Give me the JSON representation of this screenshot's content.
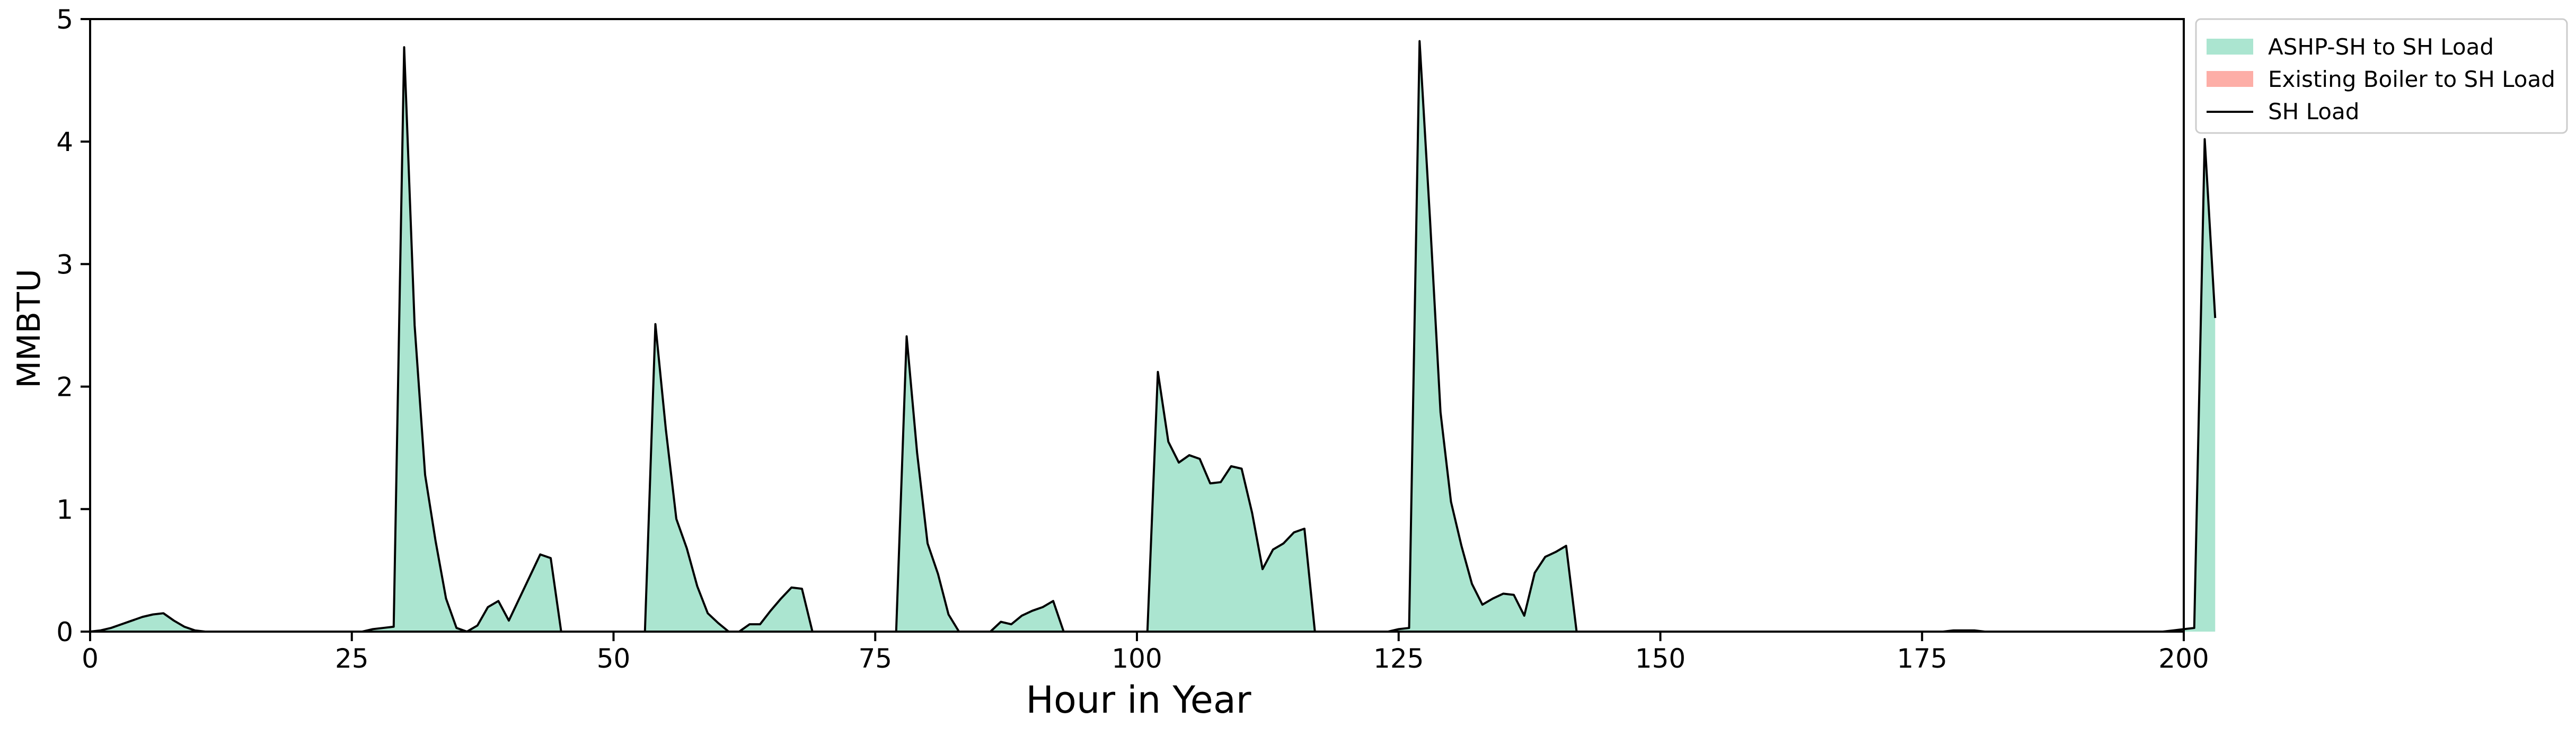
{
  "chart_data": {
    "type": "area",
    "title": "",
    "xlabel": "Hour in Year",
    "ylabel": "MMBTU",
    "xlim": [
      0,
      200
    ],
    "ylim": [
      0,
      5
    ],
    "x_ticks": [
      0,
      25,
      50,
      75,
      100,
      125,
      150,
      175,
      200
    ],
    "y_ticks": [
      0,
      1,
      2,
      3,
      4,
      5
    ],
    "grid": false,
    "legend_placement": "outside-top-right",
    "series": [
      {
        "name": "ASHP-SH to SH Load",
        "kind": "stacked-area",
        "color": "#abe5d0",
        "values": [
          0,
          0.01,
          0.03,
          0.06,
          0.09,
          0.12,
          0.14,
          0.15,
          0.09,
          0.04,
          0.01,
          0,
          0,
          0,
          0,
          0,
          0,
          0,
          0,
          0,
          0,
          0,
          0,
          0,
          0,
          0,
          0,
          0.02,
          0.03,
          0.04,
          4.77,
          2.5,
          1.28,
          0.74,
          0.27,
          0.03,
          0,
          0.05,
          0.2,
          0.25,
          0.09,
          0.27,
          0.45,
          0.63,
          0.6,
          0,
          0,
          0,
          0,
          0,
          0,
          0,
          0,
          0,
          2.51,
          1.65,
          0.92,
          0.68,
          0.37,
          0.15,
          0.07,
          0,
          0,
          0.06,
          0.06,
          0.17,
          0.27,
          0.36,
          0.35,
          0,
          0,
          0,
          0,
          0,
          0,
          0,
          0,
          0,
          2.41,
          1.46,
          0.72,
          0.47,
          0.14,
          0,
          0,
          0,
          0,
          0.08,
          0.06,
          0.13,
          0.17,
          0.2,
          0.25,
          0,
          0,
          0,
          0,
          0,
          0,
          0,
          0,
          0,
          2.12,
          1.55,
          1.38,
          1.44,
          1.41,
          1.21,
          1.22,
          1.35,
          1.33,
          0.97,
          0.51,
          0.67,
          0.72,
          0.81,
          0.84,
          0,
          0,
          0,
          0,
          0,
          0,
          0,
          0,
          0.02,
          0.03,
          4.82,
          3.36,
          1.79,
          1.06,
          0.7,
          0.39,
          0.22,
          0.27,
          0.31,
          0.3,
          0.13,
          0.48,
          0.61,
          0.65,
          0.7,
          0,
          0,
          0,
          0,
          0,
          0,
          0,
          0,
          0,
          0,
          0,
          0,
          0,
          0,
          0,
          0,
          0,
          0,
          0,
          0,
          0,
          0,
          0,
          0,
          0,
          0,
          0,
          0,
          0,
          0,
          0,
          0,
          0,
          0,
          0,
          0,
          0.01,
          0.01,
          0.01,
          0,
          0,
          0,
          0,
          0,
          0,
          0,
          0,
          0,
          0,
          0,
          0,
          0,
          0,
          0,
          0,
          0,
          0,
          0.01,
          0.02,
          0.03,
          4.02,
          2.56
        ]
      },
      {
        "name": "Existing Boiler to SH Load",
        "kind": "stacked-area",
        "color": "#fdaea7",
        "values": []
      },
      {
        "name": "SH Load",
        "kind": "line",
        "color": "#000000",
        "values": []
      }
    ]
  }
}
